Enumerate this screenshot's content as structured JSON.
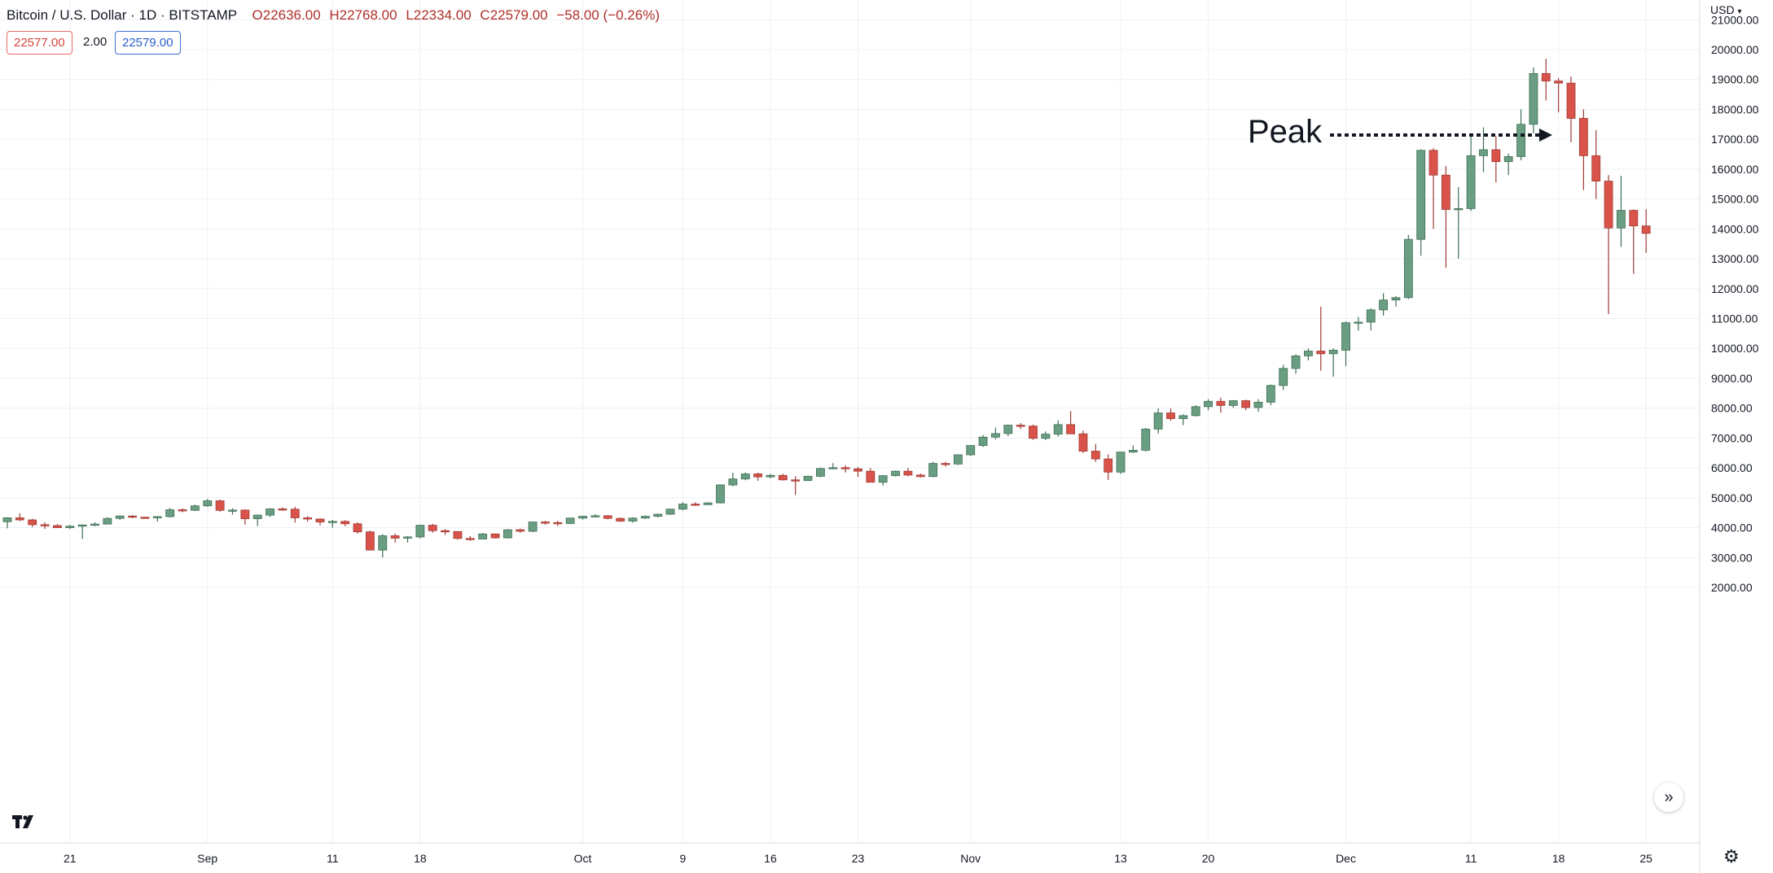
{
  "header": {
    "symbol": "Bitcoin / U.S. Dollar · 1D · BITSTAMP",
    "open": "O22636.00",
    "high": "H22768.00",
    "low": "L22334.00",
    "close": "C22579.00",
    "change": "−58.00 (−0.26%)"
  },
  "quote": {
    "bid": "22577.00",
    "spread": "2.00",
    "ask": "22579.00"
  },
  "currency": "USD",
  "annotation": {
    "text": "Peak"
  },
  "colors": {
    "up": "#6a9e82",
    "down": "#d9534a",
    "grid": "#eef0f3",
    "axis_text": "#131722"
  },
  "icons": {
    "fit": "double-chevron-right-icon",
    "logo": "tradingview-logo-icon",
    "settings": "gear-icon"
  },
  "chart_data": {
    "type": "candlestick",
    "ylim": [
      1500,
      21000
    ],
    "y_ticks": [
      "2000.00",
      "3000.00",
      "4000.00",
      "5000.00",
      "6000.00",
      "7000.00",
      "8000.00",
      "9000.00",
      "10000.00",
      "11000.00",
      "12000.00",
      "13000.00",
      "14000.00",
      "15000.00",
      "16000.00",
      "17000.00",
      "18000.00",
      "19000.00",
      "20000.00",
      "21000.00"
    ],
    "x_ticks": [
      {
        "label": "21",
        "date": "2017-08-21"
      },
      {
        "label": "Sep",
        "date": "2017-09-01"
      },
      {
        "label": "11",
        "date": "2017-09-11"
      },
      {
        "label": "18",
        "date": "2017-09-18"
      },
      {
        "label": "Oct",
        "date": "2017-10-01"
      },
      {
        "label": "9",
        "date": "2017-10-09"
      },
      {
        "label": "16",
        "date": "2017-10-16"
      },
      {
        "label": "23",
        "date": "2017-10-23"
      },
      {
        "label": "Nov",
        "date": "2017-11-01"
      },
      {
        "label": "13",
        "date": "2017-11-13"
      },
      {
        "label": "20",
        "date": "2017-11-20"
      },
      {
        "label": "Dec",
        "date": "2017-12-01"
      },
      {
        "label": "11",
        "date": "2017-12-11"
      },
      {
        "label": "18",
        "date": "2017-12-18"
      },
      {
        "label": "25",
        "date": "2017-12-25"
      }
    ],
    "first_date": "2017-08-16",
    "candles": [
      [
        4200,
        4350,
        3980,
        4330
      ],
      [
        4330,
        4480,
        4220,
        4260
      ],
      [
        4260,
        4300,
        4020,
        4100
      ],
      [
        4100,
        4180,
        3960,
        4070
      ],
      [
        4070,
        4120,
        3990,
        4000
      ],
      [
        4000,
        4090,
        3950,
        4050
      ],
      [
        4050,
        4100,
        3620,
        4090
      ],
      [
        4090,
        4180,
        4050,
        4120
      ],
      [
        4120,
        4350,
        4110,
        4310
      ],
      [
        4310,
        4410,
        4260,
        4390
      ],
      [
        4390,
        4420,
        4310,
        4350
      ],
      [
        4350,
        4370,
        4300,
        4340
      ],
      [
        4340,
        4390,
        4200,
        4370
      ],
      [
        4370,
        4660,
        4340,
        4600
      ],
      [
        4600,
        4640,
        4520,
        4580
      ],
      [
        4580,
        4770,
        4560,
        4730
      ],
      [
        4730,
        4960,
        4700,
        4900
      ],
      [
        4900,
        4940,
        4530,
        4580
      ],
      [
        4580,
        4650,
        4440,
        4590
      ],
      [
        4590,
        4610,
        4100,
        4300
      ],
      [
        4300,
        4440,
        4050,
        4420
      ],
      [
        4420,
        4650,
        4360,
        4630
      ],
      [
        4630,
        4680,
        4560,
        4620
      ],
      [
        4620,
        4700,
        4170,
        4330
      ],
      [
        4330,
        4390,
        4200,
        4290
      ],
      [
        4290,
        4310,
        4080,
        4190
      ],
      [
        4190,
        4260,
        4000,
        4210
      ],
      [
        4210,
        4250,
        4050,
        4130
      ],
      [
        4130,
        4180,
        3800,
        3860
      ],
      [
        3860,
        3900,
        3240,
        3250
      ],
      [
        3250,
        3780,
        3000,
        3730
      ],
      [
        3730,
        3800,
        3500,
        3650
      ],
      [
        3650,
        3720,
        3500,
        3690
      ],
      [
        3690,
        4100,
        3640,
        4080
      ],
      [
        4080,
        4130,
        3830,
        3900
      ],
      [
        3900,
        3950,
        3760,
        3870
      ],
      [
        3870,
        3880,
        3600,
        3640
      ],
      [
        3640,
        3720,
        3560,
        3620
      ],
      [
        3620,
        3820,
        3610,
        3790
      ],
      [
        3790,
        3800,
        3630,
        3660
      ],
      [
        3660,
        3950,
        3640,
        3930
      ],
      [
        3930,
        3970,
        3830,
        3880
      ],
      [
        3880,
        4200,
        3850,
        4190
      ],
      [
        4190,
        4230,
        4100,
        4170
      ],
      [
        4170,
        4230,
        4050,
        4140
      ],
      [
        4140,
        4330,
        4120,
        4320
      ],
      [
        4320,
        4400,
        4270,
        4380
      ],
      [
        4380,
        4450,
        4350,
        4400
      ],
      [
        4400,
        4420,
        4280,
        4310
      ],
      [
        4310,
        4340,
        4190,
        4220
      ],
      [
        4220,
        4350,
        4170,
        4320
      ],
      [
        4320,
        4410,
        4290,
        4380
      ],
      [
        4380,
        4470,
        4340,
        4450
      ],
      [
        4450,
        4630,
        4430,
        4620
      ],
      [
        4620,
        4850,
        4580,
        4790
      ],
      [
        4790,
        4850,
        4730,
        4770
      ],
      [
        4770,
        4850,
        4760,
        4830
      ],
      [
        4830,
        5450,
        4810,
        5430
      ],
      [
        5430,
        5840,
        5380,
        5630
      ],
      [
        5630,
        5850,
        5590,
        5800
      ],
      [
        5800,
        5840,
        5570,
        5700
      ],
      [
        5700,
        5800,
        5650,
        5750
      ],
      [
        5750,
        5800,
        5580,
        5600
      ],
      [
        5600,
        5720,
        5100,
        5580
      ],
      [
        5580,
        5740,
        5560,
        5720
      ],
      [
        5720,
        6010,
        5690,
        5980
      ],
      [
        5980,
        6160,
        5960,
        6010
      ],
      [
        6010,
        6090,
        5850,
        5970
      ],
      [
        5970,
        6030,
        5700,
        5890
      ],
      [
        5890,
        5990,
        5550,
        5520
      ],
      [
        5520,
        5760,
        5410,
        5740
      ],
      [
        5740,
        5910,
        5710,
        5890
      ],
      [
        5890,
        6000,
        5720,
        5760
      ],
      [
        5760,
        5810,
        5680,
        5710
      ],
      [
        5710,
        6200,
        5690,
        6150
      ],
      [
        6150,
        6200,
        6050,
        6130
      ],
      [
        6130,
        6440,
        6100,
        6440
      ],
      [
        6440,
        6760,
        6400,
        6750
      ],
      [
        6750,
        7100,
        6700,
        7030
      ],
      [
        7030,
        7350,
        6950,
        7150
      ],
      [
        7150,
        7450,
        7060,
        7430
      ],
      [
        7430,
        7500,
        7300,
        7400
      ],
      [
        7400,
        7450,
        6940,
        6990
      ],
      [
        6990,
        7220,
        6930,
        7130
      ],
      [
        7130,
        7590,
        7050,
        7450
      ],
      [
        7450,
        7900,
        7200,
        7140
      ],
      [
        7140,
        7250,
        6500,
        6560
      ],
      [
        6560,
        6800,
        6200,
        6300
      ],
      [
        6300,
        6450,
        5600,
        5860
      ],
      [
        5860,
        6500,
        5800,
        6530
      ],
      [
        6530,
        6750,
        6500,
        6590
      ],
      [
        6590,
        7340,
        6550,
        7300
      ],
      [
        7300,
        7990,
        7150,
        7840
      ],
      [
        7840,
        7990,
        7580,
        7650
      ],
      [
        7650,
        7790,
        7430,
        7750
      ],
      [
        7750,
        8100,
        7720,
        8050
      ],
      [
        8050,
        8300,
        7930,
        8230
      ],
      [
        8230,
        8350,
        7850,
        8090
      ],
      [
        8090,
        8270,
        8010,
        8250
      ],
      [
        8250,
        8280,
        7930,
        8020
      ],
      [
        8020,
        8300,
        7880,
        8200
      ],
      [
        8200,
        8790,
        8100,
        8760
      ],
      [
        8760,
        9450,
        8610,
        9330
      ],
      [
        9330,
        9800,
        9150,
        9750
      ],
      [
        9750,
        10000,
        9600,
        9910
      ],
      [
        9910,
        11400,
        9250,
        9820
      ],
      [
        9820,
        10000,
        9050,
        9940
      ],
      [
        9940,
        10900,
        9400,
        10860
      ],
      [
        10860,
        11050,
        10600,
        10880
      ],
      [
        10880,
        11340,
        10600,
        11290
      ],
      [
        11290,
        11850,
        11100,
        11620
      ],
      [
        11620,
        11750,
        11400,
        11700
      ],
      [
        11700,
        13800,
        11650,
        13650
      ],
      [
        13650,
        16660,
        13100,
        16630
      ],
      [
        16630,
        16700,
        14000,
        15800
      ],
      [
        15800,
        16100,
        12700,
        14650
      ],
      [
        14650,
        15400,
        13000,
        14680
      ],
      [
        14680,
        17200,
        14600,
        16450
      ],
      [
        16450,
        17400,
        15900,
        16650
      ],
      [
        16650,
        17100,
        15560,
        16250
      ],
      [
        16250,
        16520,
        15800,
        16420
      ],
      [
        16420,
        18000,
        16300,
        17500
      ],
      [
        17500,
        19400,
        17200,
        19200
      ],
      [
        19200,
        19700,
        18300,
        18950
      ],
      [
        18950,
        19050,
        17900,
        18880
      ],
      [
        18880,
        19100,
        16900,
        17700
      ],
      [
        17700,
        18000,
        15300,
        16450
      ],
      [
        16450,
        17300,
        15000,
        15600
      ],
      [
        15600,
        15800,
        11150,
        14030
      ],
      [
        14030,
        15780,
        13400,
        14620
      ],
      [
        14620,
        14650,
        12500,
        14100
      ],
      [
        14100,
        14660,
        13200,
        13850
      ]
    ]
  }
}
